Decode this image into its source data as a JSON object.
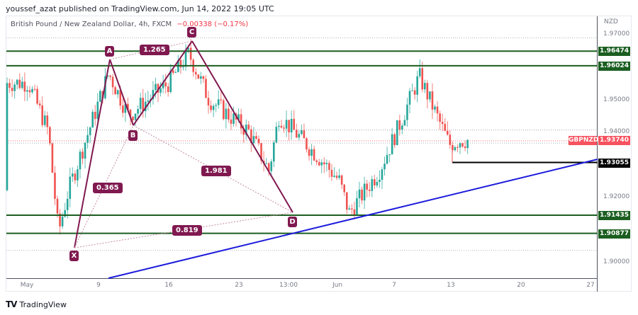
{
  "header": {
    "text": "youssef_azat published on TradingView.com, Jun 14, 2022 19:05 UTC"
  },
  "legend": {
    "symbol": "British Pound / New Zealand Dollar, 4h, FXCM",
    "change": "−0.00338 (−0.17%)"
  },
  "price_axis": {
    "currency": "NZD",
    "ticks": [
      "1.97000",
      "1.95000",
      "1.94000",
      "1.92000",
      "1.90000"
    ],
    "badges": [
      {
        "value": "1.96474",
        "color": "#1b5e20"
      },
      {
        "value": "1.96024",
        "color": "#1b5e20"
      },
      {
        "value": "1.93740",
        "color": "#f7525f"
      },
      {
        "value": "1.93055",
        "color": "#000000"
      },
      {
        "value": "1.91435",
        "color": "#1b5e20"
      },
      {
        "value": "1.90877",
        "color": "#1b5e20"
      }
    ],
    "symbol_badge": "GBPNZD"
  },
  "time_axis": {
    "ticks": [
      "May",
      "9",
      "16",
      "23",
      "13:00",
      "Jun",
      "7",
      "13",
      "20",
      "27"
    ]
  },
  "pattern": {
    "points": [
      "X",
      "A",
      "B",
      "C",
      "D"
    ],
    "ratios": [
      "1.265",
      "0.365",
      "1.981",
      "0.819"
    ]
  },
  "footer": {
    "logo": "TV",
    "brand": "TradingView"
  },
  "colors": {
    "up": "#26a69a",
    "down": "#ef5350",
    "pattern": "#801950",
    "levels": "#1b5e20",
    "trendline": "#1c1cdc"
  },
  "chart_data": {
    "type": "candlestick",
    "title": "British Pound / New Zealand Dollar, 4h, FXCM",
    "symbol": "GBPNZD",
    "timeframe": "4h",
    "last_price": 1.9374,
    "change": -0.00338,
    "change_pct": -0.17,
    "ylabel": "NZD",
    "ylim": [
      1.896,
      1.9715
    ],
    "x_ticks": [
      "May",
      "9",
      "16",
      "23",
      "13:00",
      "Jun",
      "7",
      "13",
      "20",
      "27"
    ],
    "y_ticks": [
      1.97,
      1.95,
      1.94,
      1.92,
      1.9
    ],
    "horizontal_levels": [
      1.96474,
      1.96024,
      1.93055,
      1.91435,
      1.90877
    ],
    "harmonic_pattern": {
      "X": {
        "date": "May 5",
        "price": 1.9043
      },
      "A": {
        "date": "May 10",
        "price": 1.9617
      },
      "B": {
        "date": "May 12",
        "price": 1.9415
      },
      "C": {
        "date": "May 18",
        "price": 1.9672
      },
      "D": {
        "date": "May 27",
        "price": 1.9143
      },
      "ratios": {
        "XAB": 0.365,
        "ABC": 1.265,
        "BCD": 1.981,
        "XAD": 0.819
      }
    },
    "trendline": {
      "from": {
        "date": "May 7",
        "price": 1.8955
      },
      "to": {
        "date": "Jun 27",
        "price": 1.931
      }
    },
    "approx_path": [
      {
        "date": "Apr 29",
        "close": 1.922
      },
      {
        "date": "May 2",
        "close": 1.955
      },
      {
        "date": "May 4",
        "close": 1.94
      },
      {
        "date": "May 5",
        "close": 1.909
      },
      {
        "date": "May 6",
        "close": 1.922
      },
      {
        "date": "May 10",
        "close": 1.958
      },
      {
        "date": "May 12",
        "close": 1.945
      },
      {
        "date": "May 16",
        "close": 1.955
      },
      {
        "date": "May 18",
        "close": 1.964
      },
      {
        "date": "May 20",
        "close": 1.95
      },
      {
        "date": "May 24",
        "close": 1.94
      },
      {
        "date": "May 26",
        "close": 1.928
      },
      {
        "date": "May 27",
        "close": 1.945
      },
      {
        "date": "May 31",
        "close": 1.932
      },
      {
        "date": "Jun 2",
        "close": 1.925
      },
      {
        "date": "Jun 3",
        "close": 1.915
      },
      {
        "date": "Jun 6",
        "close": 1.928
      },
      {
        "date": "Jun 8",
        "close": 1.942
      },
      {
        "date": "Jun 10",
        "close": 1.957
      },
      {
        "date": "Jun 13",
        "close": 1.936
      },
      {
        "date": "Jun 14",
        "close": 1.9374
      }
    ]
  }
}
